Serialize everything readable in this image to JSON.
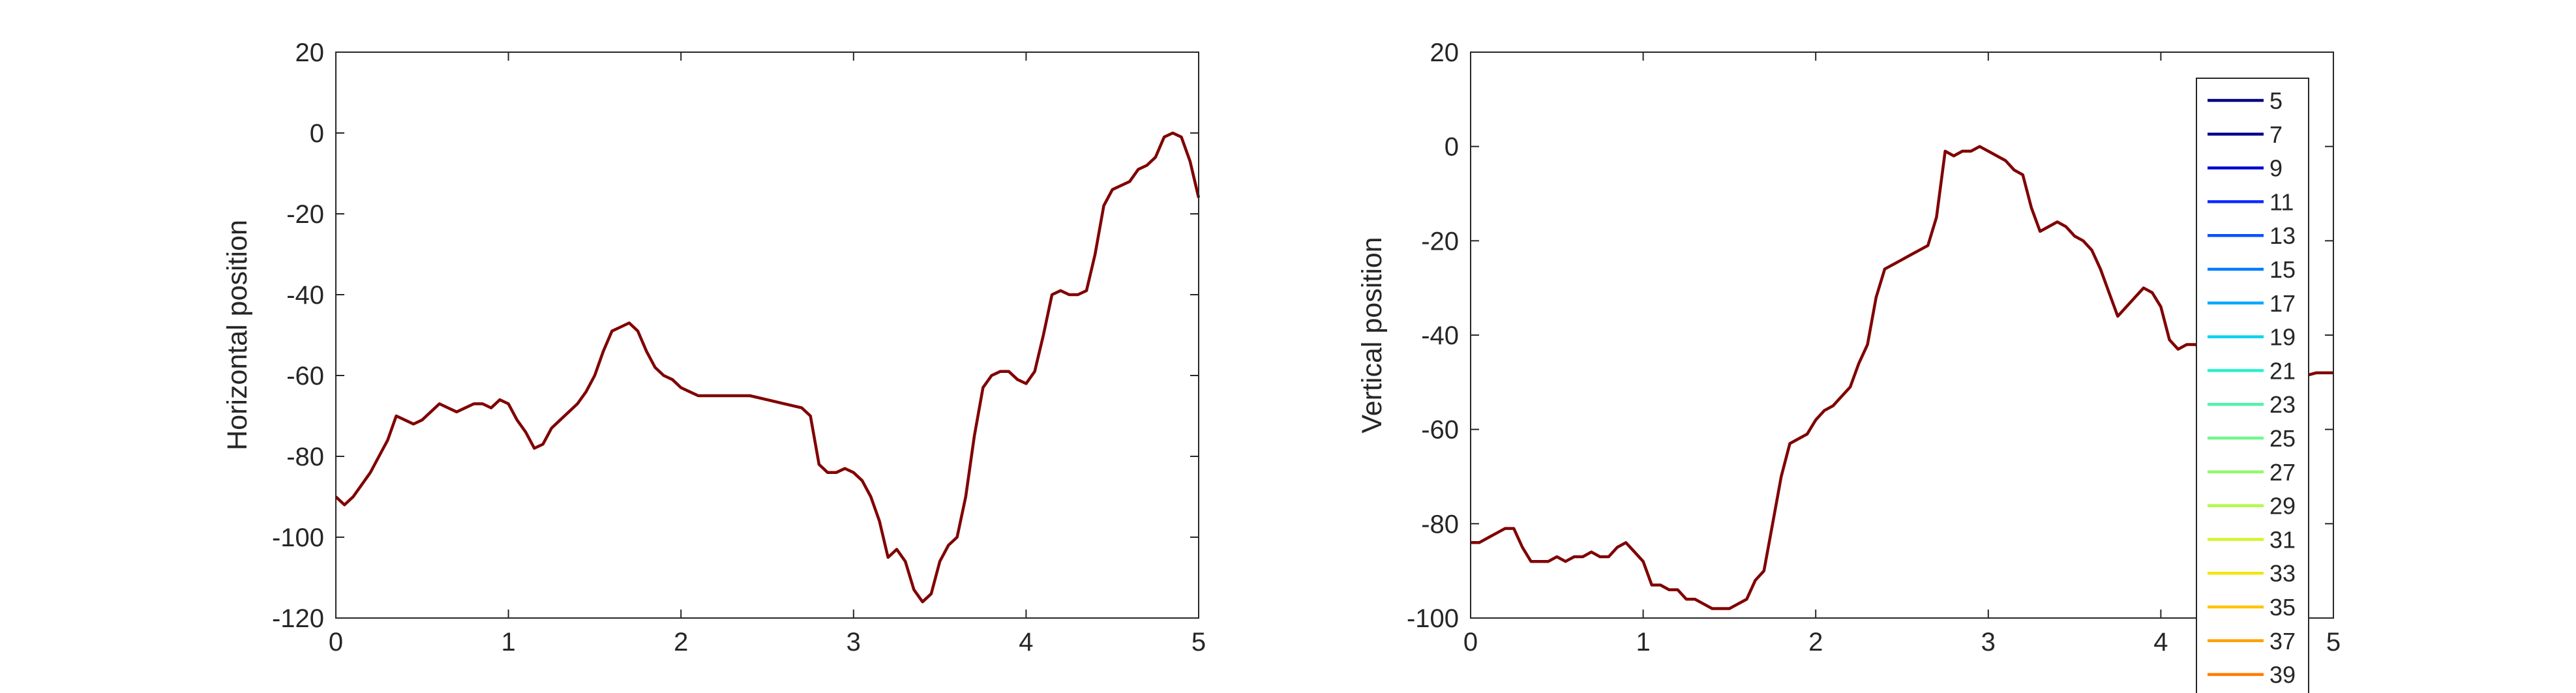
{
  "chart_data": [
    {
      "type": "line",
      "ylabel": "Horizontal position",
      "xlim": [
        0,
        5
      ],
      "ylim": [
        -120,
        20
      ],
      "xticks": [
        0,
        1,
        2,
        3,
        4,
        5
      ],
      "yticks": [
        -120,
        -100,
        -80,
        -60,
        -40,
        -20,
        0,
        20
      ],
      "grid": false,
      "series": [
        {
          "color": "#800000",
          "x": [
            0,
            0.05,
            0.1,
            0.15,
            0.2,
            0.25,
            0.3,
            0.35,
            0.4,
            0.45,
            0.5,
            0.55,
            0.6,
            0.65,
            0.7,
            0.75,
            0.8,
            0.85,
            0.9,
            0.95,
            1.0,
            1.05,
            1.1,
            1.15,
            1.2,
            1.25,
            1.3,
            1.35,
            1.4,
            1.45,
            1.5,
            1.55,
            1.6,
            1.65,
            1.7,
            1.75,
            1.8,
            1.85,
            1.9,
            1.95,
            2.0,
            2.05,
            2.1,
            2.2,
            2.3,
            2.4,
            2.5,
            2.6,
            2.7,
            2.75,
            2.8,
            2.85,
            2.9,
            2.95,
            3.0,
            3.05,
            3.1,
            3.15,
            3.2,
            3.25,
            3.3,
            3.35,
            3.4,
            3.45,
            3.5,
            3.55,
            3.6,
            3.65,
            3.7,
            3.75,
            3.8,
            3.85,
            3.9,
            3.95,
            4.0,
            4.05,
            4.1,
            4.15,
            4.2,
            4.25,
            4.3,
            4.35,
            4.4,
            4.45,
            4.5,
            4.55,
            4.6,
            4.65,
            4.7,
            4.75,
            4.8,
            4.85,
            4.9,
            4.95,
            5.0
          ],
          "y": [
            -90,
            -92,
            -90,
            -87,
            -84,
            -80,
            -76,
            -70,
            -71,
            -72,
            -71,
            -69,
            -67,
            -68,
            -69,
            -68,
            -67,
            -67,
            -68,
            -66,
            -67,
            -71,
            -74,
            -78,
            -77,
            -73,
            -71,
            -69,
            -67,
            -64,
            -60,
            -54,
            -49,
            -48,
            -47,
            -49,
            -54,
            -58,
            -60,
            -61,
            -63,
            -64,
            -65,
            -65,
            -65,
            -65,
            -66,
            -67,
            -68,
            -70,
            -82,
            -84,
            -84,
            -83,
            -84,
            -86,
            -90,
            -96,
            -105,
            -103,
            -106,
            -113,
            -116,
            -114,
            -106,
            -102,
            -100,
            -90,
            -75,
            -63,
            -60,
            -59,
            -59,
            -61,
            -62,
            -59,
            -50,
            -40,
            -39,
            -40,
            -40,
            -39,
            -30,
            -18,
            -14,
            -13,
            -12,
            -9,
            -8,
            -6,
            -1,
            0,
            -1,
            -7,
            -16
          ]
        }
      ]
    },
    {
      "type": "line",
      "ylabel": "Vertical position",
      "xlim": [
        0,
        5
      ],
      "ylim": [
        -100,
        20
      ],
      "xticks": [
        0,
        1,
        2,
        3,
        4,
        5
      ],
      "yticks": [
        -100,
        -80,
        -60,
        -40,
        -20,
        0,
        20
      ],
      "grid": false,
      "series": [
        {
          "color": "#800000",
          "x": [
            0,
            0.05,
            0.1,
            0.15,
            0.2,
            0.25,
            0.3,
            0.35,
            0.4,
            0.45,
            0.5,
            0.55,
            0.6,
            0.65,
            0.7,
            0.75,
            0.8,
            0.85,
            0.9,
            0.95,
            1.0,
            1.05,
            1.1,
            1.15,
            1.2,
            1.25,
            1.3,
            1.35,
            1.4,
            1.45,
            1.5,
            1.55,
            1.6,
            1.65,
            1.7,
            1.75,
            1.8,
            1.85,
            1.9,
            1.95,
            2.0,
            2.05,
            2.1,
            2.15,
            2.2,
            2.25,
            2.3,
            2.35,
            2.4,
            2.45,
            2.5,
            2.55,
            2.6,
            2.65,
            2.7,
            2.75,
            2.8,
            2.85,
            2.9,
            2.95,
            3.0,
            3.05,
            3.1,
            3.15,
            3.2,
            3.25,
            3.3,
            3.35,
            3.4,
            3.45,
            3.5,
            3.55,
            3.6,
            3.65,
            3.7,
            3.75,
            3.8,
            3.85,
            3.9,
            3.95,
            4.0,
            4.05,
            4.1,
            4.15,
            4.2,
            4.3,
            4.4,
            4.5,
            4.6,
            4.7,
            4.8,
            4.9,
            5.0
          ],
          "y": [
            -84,
            -84,
            -83,
            -82,
            -81,
            -81,
            -85,
            -88,
            -88,
            -88,
            -87,
            -88,
            -87,
            -87,
            -86,
            -87,
            -87,
            -85,
            -84,
            -86,
            -88,
            -93,
            -93,
            -94,
            -94,
            -96,
            -96,
            -97,
            -98,
            -98,
            -98,
            -97,
            -96,
            -92,
            -90,
            -80,
            -70,
            -63,
            -62,
            -61,
            -58,
            -56,
            -55,
            -53,
            -51,
            -46,
            -42,
            -32,
            -26,
            -25,
            -24,
            -23,
            -22,
            -21,
            -15,
            -1,
            -2,
            -1,
            -1,
            0,
            -1,
            -2,
            -3,
            -5,
            -6,
            -13,
            -18,
            -17,
            -16,
            -17,
            -19,
            -20,
            -22,
            -26,
            -31,
            -36,
            -34,
            -32,
            -30,
            -31,
            -34,
            -41,
            -43,
            -42,
            -42,
            -44,
            -46,
            -47,
            -48,
            -49,
            -49,
            -48,
            -48
          ]
        }
      ]
    }
  ],
  "legend": {
    "placement": "right, over second plot",
    "entries": [
      {
        "label": "5",
        "color": "#000080"
      },
      {
        "label": "7",
        "color": "#00008c"
      },
      {
        "label": "9",
        "color": "#0000d0"
      },
      {
        "label": "11",
        "color": "#0a2aff"
      },
      {
        "label": "13",
        "color": "#0052ff"
      },
      {
        "label": "15",
        "color": "#007bff"
      },
      {
        "label": "17",
        "color": "#00a8ff"
      },
      {
        "label": "19",
        "color": "#0ad2f0"
      },
      {
        "label": "21",
        "color": "#26f0ce"
      },
      {
        "label": "23",
        "color": "#4df4a8"
      },
      {
        "label": "25",
        "color": "#6ff88a"
      },
      {
        "label": "27",
        "color": "#92fa6a"
      },
      {
        "label": "29",
        "color": "#b2fa4a"
      },
      {
        "label": "31",
        "color": "#d4f42a"
      },
      {
        "label": "33",
        "color": "#f2e60e"
      },
      {
        "label": "35",
        "color": "#ffc400"
      },
      {
        "label": "37",
        "color": "#ffa200"
      },
      {
        "label": "39",
        "color": "#ff7c00"
      }
    ]
  }
}
